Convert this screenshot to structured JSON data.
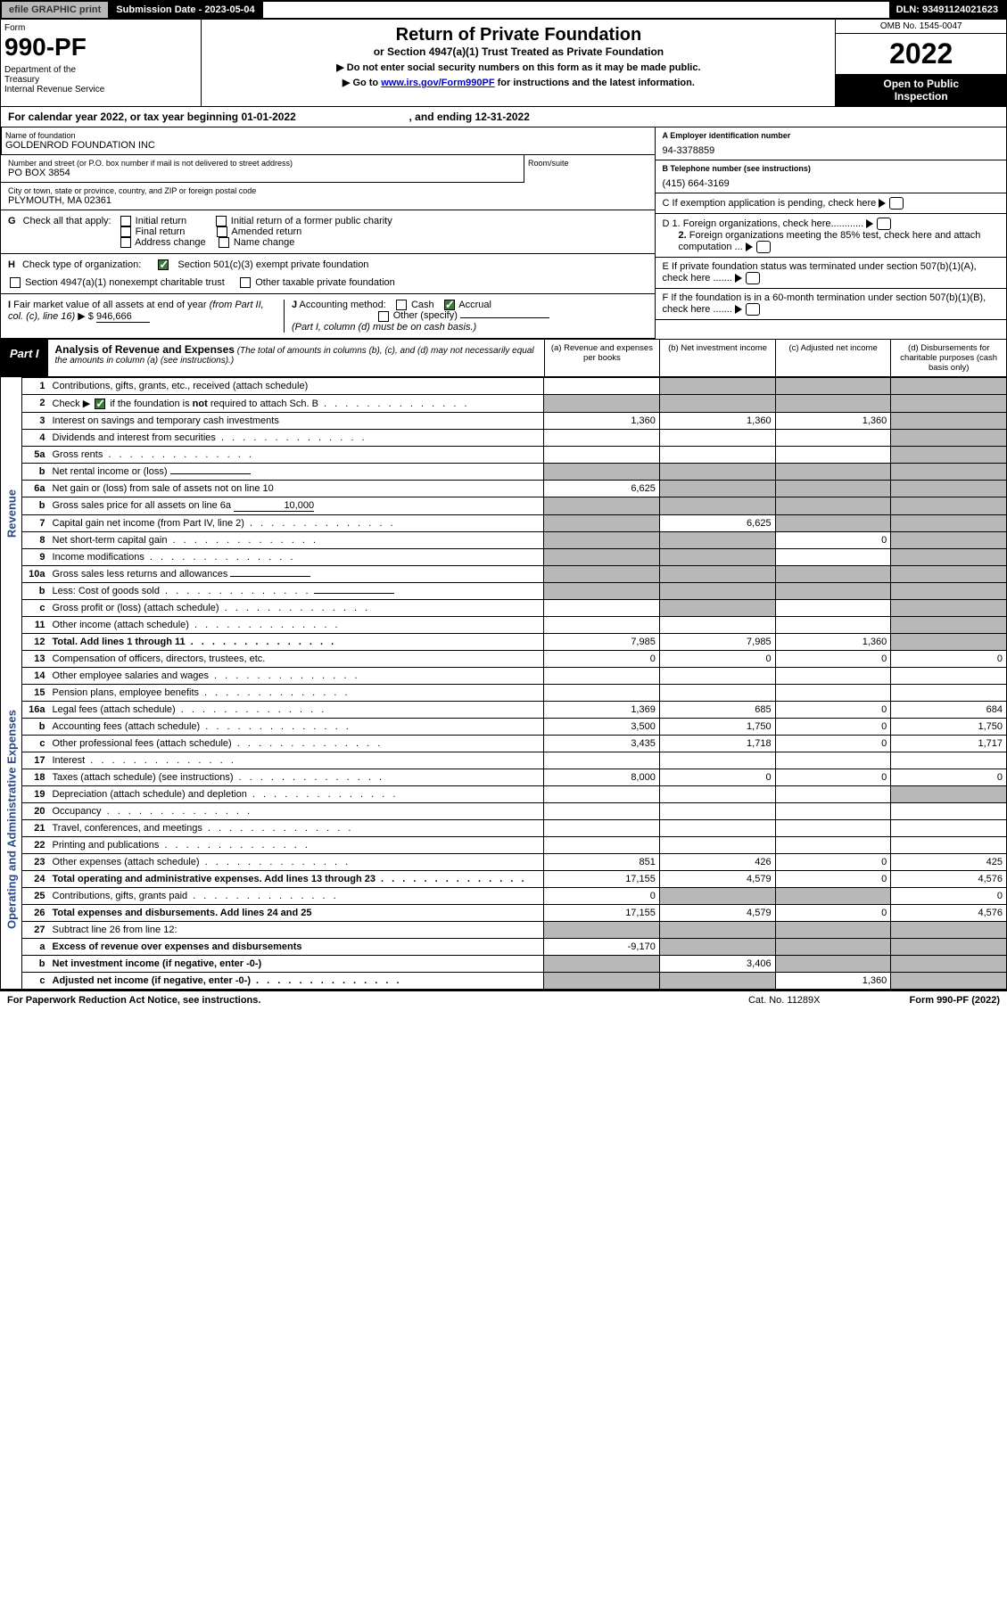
{
  "header": {
    "efile": "efile GRAPHIC print",
    "sub_label": "Submission Date - 2023-05-04",
    "dln": "DLN: 93491124021623"
  },
  "form_head": {
    "form": "Form",
    "num": "990-PF",
    "dept": "Department of the Treasury\nInternal Revenue Service",
    "title": "Return of Private Foundation",
    "sub1": "or Section 4947(a)(1) Trust Treated as Private Foundation",
    "sub2a": "▶ Do not enter social security numbers on this form as it may be made public.",
    "sub2b": "▶ Go to www.irs.gov/Form990PF for instructions and the latest information.",
    "link": "www.irs.gov/Form990PF",
    "omb": "OMB No. 1545-0047",
    "year": "2022",
    "open": "Open to Public Inspection"
  },
  "cal": {
    "text1": "For calendar year 2022, or tax year beginning 01-01-2022",
    "text2": ", and ending 12-31-2022"
  },
  "info": {
    "name_label": "Name of foundation",
    "name": "GOLDENROD FOUNDATION INC",
    "addr_label": "Number and street (or P.O. box number if mail is not delivered to street address)",
    "addr": "PO BOX 3854",
    "room_label": "Room/suite",
    "city_label": "City or town, state or province, country, and ZIP or foreign postal code",
    "city": "PLYMOUTH, MA  02361",
    "a_label": "A Employer identification number",
    "a_val": "94-3378859",
    "b_label": "B Telephone number (see instructions)",
    "b_val": "(415) 664-3169",
    "c_label": "C If exemption application is pending, check here",
    "d1": "D 1. Foreign organizations, check here............",
    "d2": "2. Foreign organizations meeting the 85% test, check here and attach computation ...",
    "e_label": "E  If private foundation status was terminated under section 507(b)(1)(A), check here .......",
    "f_label": "F  If the foundation is in a 60-month termination under section 507(b)(1)(B), check here .......",
    "g": "G Check all that apply:",
    "g_opts": [
      "Initial return",
      "Final return",
      "Address change",
      "Initial return of a former public charity",
      "Amended return",
      "Name change"
    ],
    "h": "H Check type of organization:",
    "h1": "Section 501(c)(3) exempt private foundation",
    "h2": "Section 4947(a)(1) nonexempt charitable trust",
    "h3": "Other taxable private foundation",
    "i": "I Fair market value of all assets at end of year (from Part II, col. (c), line 16) ▶ $",
    "i_val": "946,666",
    "j": "J Accounting method:",
    "j_cash": "Cash",
    "j_acc": "Accrual",
    "j_other": "Other (specify)",
    "j_note": "(Part I, column (d) must be on cash basis.)"
  },
  "part1": {
    "label": "Part I",
    "title": "Analysis of Revenue and Expenses",
    "desc": "(The total of amounts in columns (b), (c), and (d) may not necessarily equal the amounts in column (a) (see instructions).)",
    "cols": [
      "(a)  Revenue and expenses per books",
      "(b)  Net investment income",
      "(c)  Adjusted net income",
      "(d)  Disbursements for charitable purposes (cash basis only)"
    ]
  },
  "sides": {
    "rev": "Revenue",
    "exp": "Operating and Administrative Expenses"
  },
  "rows": [
    {
      "n": "1",
      "d": "Contributions, gifts, grants, etc., received (attach schedule)",
      "a": "",
      "b": "g",
      "c": "g",
      "dd": "g"
    },
    {
      "n": "2",
      "d": "Check ▶ ☑ if the foundation is not required to attach Sch. B",
      "dots": true,
      "a": "g",
      "b": "g",
      "c": "g",
      "dd": "g",
      "cb": true
    },
    {
      "n": "3",
      "d": "Interest on savings and temporary cash investments",
      "a": "1,360",
      "b": "1,360",
      "c": "1,360",
      "dd": "g"
    },
    {
      "n": "4",
      "d": "Dividends and interest from securities",
      "dots": true,
      "a": "",
      "b": "",
      "c": "",
      "dd": "g"
    },
    {
      "n": "5a",
      "d": "Gross rents",
      "dots": true,
      "a": "",
      "b": "",
      "c": "",
      "dd": "g"
    },
    {
      "n": "b",
      "d": "Net rental income or (loss)",
      "box": true,
      "a": "g",
      "b": "g",
      "c": "g",
      "dd": "g"
    },
    {
      "n": "6a",
      "d": "Net gain or (loss) from sale of assets not on line 10",
      "a": "6,625",
      "b": "g",
      "c": "g",
      "dd": "g"
    },
    {
      "n": "b",
      "d": "Gross sales price for all assets on line 6a",
      "box": true,
      "boxval": "10,000",
      "a": "g",
      "b": "g",
      "c": "g",
      "dd": "g"
    },
    {
      "n": "7",
      "d": "Capital gain net income (from Part IV, line 2)",
      "dots": true,
      "a": "g",
      "b": "6,625",
      "c": "g",
      "dd": "g"
    },
    {
      "n": "8",
      "d": "Net short-term capital gain",
      "dots": true,
      "a": "g",
      "b": "g",
      "c": "0",
      "dd": "g"
    },
    {
      "n": "9",
      "d": "Income modifications",
      "dots": true,
      "a": "g",
      "b": "g",
      "c": "",
      "dd": "g"
    },
    {
      "n": "10a",
      "d": "Gross sales less returns and allowances",
      "box": true,
      "a": "g",
      "b": "g",
      "c": "g",
      "dd": "g"
    },
    {
      "n": "b",
      "d": "Less: Cost of goods sold",
      "dots": true,
      "box": true,
      "a": "g",
      "b": "g",
      "c": "g",
      "dd": "g"
    },
    {
      "n": "c",
      "d": "Gross profit or (loss) (attach schedule)",
      "dots": true,
      "a": "",
      "b": "g",
      "c": "",
      "dd": "g"
    },
    {
      "n": "11",
      "d": "Other income (attach schedule)",
      "dots": true,
      "a": "",
      "b": "",
      "c": "",
      "dd": "g"
    },
    {
      "n": "12",
      "d": "Total. Add lines 1 through 11",
      "dots": true,
      "bold": true,
      "a": "7,985",
      "b": "7,985",
      "c": "1,360",
      "dd": "g"
    },
    {
      "n": "13",
      "d": "Compensation of officers, directors, trustees, etc.",
      "a": "0",
      "b": "0",
      "c": "0",
      "dd": "0",
      "sec": "exp"
    },
    {
      "n": "14",
      "d": "Other employee salaries and wages",
      "dots": true,
      "a": "",
      "b": "",
      "c": "",
      "dd": ""
    },
    {
      "n": "15",
      "d": "Pension plans, employee benefits",
      "dots": true,
      "a": "",
      "b": "",
      "c": "",
      "dd": ""
    },
    {
      "n": "16a",
      "d": "Legal fees (attach schedule)",
      "dots": true,
      "a": "1,369",
      "b": "685",
      "c": "0",
      "dd": "684"
    },
    {
      "n": "b",
      "d": "Accounting fees (attach schedule)",
      "dots": true,
      "a": "3,500",
      "b": "1,750",
      "c": "0",
      "dd": "1,750"
    },
    {
      "n": "c",
      "d": "Other professional fees (attach schedule)",
      "dots": true,
      "a": "3,435",
      "b": "1,718",
      "c": "0",
      "dd": "1,717"
    },
    {
      "n": "17",
      "d": "Interest",
      "dots": true,
      "a": "",
      "b": "",
      "c": "",
      "dd": ""
    },
    {
      "n": "18",
      "d": "Taxes (attach schedule) (see instructions)",
      "dots": true,
      "a": "8,000",
      "b": "0",
      "c": "0",
      "dd": "0"
    },
    {
      "n": "19",
      "d": "Depreciation (attach schedule) and depletion",
      "dots": true,
      "a": "",
      "b": "",
      "c": "",
      "dd": "g"
    },
    {
      "n": "20",
      "d": "Occupancy",
      "dots": true,
      "a": "",
      "b": "",
      "c": "",
      "dd": ""
    },
    {
      "n": "21",
      "d": "Travel, conferences, and meetings",
      "dots": true,
      "a": "",
      "b": "",
      "c": "",
      "dd": ""
    },
    {
      "n": "22",
      "d": "Printing and publications",
      "dots": true,
      "a": "",
      "b": "",
      "c": "",
      "dd": ""
    },
    {
      "n": "23",
      "d": "Other expenses (attach schedule)",
      "dots": true,
      "a": "851",
      "b": "426",
      "c": "0",
      "dd": "425"
    },
    {
      "n": "24",
      "d": "Total operating and administrative expenses. Add lines 13 through 23",
      "dots": true,
      "bold": true,
      "a": "17,155",
      "b": "4,579",
      "c": "0",
      "dd": "4,576"
    },
    {
      "n": "25",
      "d": "Contributions, gifts, grants paid",
      "dots": true,
      "a": "0",
      "b": "g",
      "c": "g",
      "dd": "0"
    },
    {
      "n": "26",
      "d": "Total expenses and disbursements. Add lines 24 and 25",
      "bold": true,
      "a": "17,155",
      "b": "4,579",
      "c": "0",
      "dd": "4,576"
    },
    {
      "n": "27",
      "d": "Subtract line 26 from line 12:",
      "a": "g",
      "b": "g",
      "c": "g",
      "dd": "g"
    },
    {
      "n": "a",
      "d": "Excess of revenue over expenses and disbursements",
      "bold": true,
      "a": "-9,170",
      "b": "g",
      "c": "g",
      "dd": "g"
    },
    {
      "n": "b",
      "d": "Net investment income (if negative, enter -0-)",
      "bold": true,
      "a": "g",
      "b": "3,406",
      "c": "g",
      "dd": "g"
    },
    {
      "n": "c",
      "d": "Adjusted net income (if negative, enter -0-)",
      "dots": true,
      "bold": true,
      "a": "g",
      "b": "g",
      "c": "1,360",
      "dd": "g"
    }
  ],
  "footer": {
    "left": "For Paperwork Reduction Act Notice, see instructions.",
    "mid": "Cat. No. 11289X",
    "right": "Form 990-PF (2022)"
  }
}
